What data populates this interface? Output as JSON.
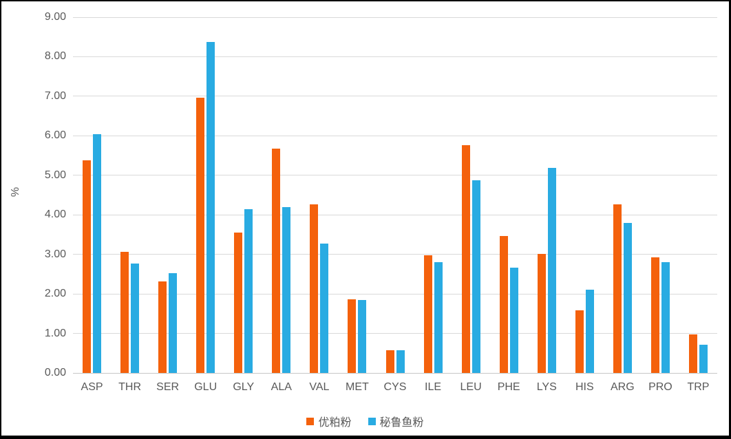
{
  "chart_data": {
    "type": "bar",
    "title": "",
    "xlabel": "",
    "ylabel": "%",
    "ylim": [
      0,
      9
    ],
    "ytick_step": 1,
    "ytick_decimals": 2,
    "grid": true,
    "legend_position": "bottom",
    "categories": [
      "ASP",
      "THR",
      "SER",
      "GLU",
      "GLY",
      "ALA",
      "VAL",
      "MET",
      "CYS",
      "ILE",
      "LEU",
      "PHE",
      "LYS",
      "HIS",
      "ARG",
      "PRO",
      "TRP"
    ],
    "series": [
      {
        "name": "优粕粉",
        "color": "#f4610c",
        "values": [
          5.38,
          3.06,
          2.31,
          6.97,
          3.55,
          5.68,
          4.26,
          1.87,
          0.58,
          2.98,
          5.76,
          3.47,
          3.02,
          1.58,
          4.26,
          2.92,
          0.97
        ]
      },
      {
        "name": "秘鲁鱼粉",
        "color": "#29abe2",
        "values": [
          6.04,
          2.76,
          2.52,
          8.37,
          4.14,
          4.19,
          3.27,
          1.85,
          0.57,
          2.8,
          4.87,
          2.66,
          5.18,
          2.11,
          3.79,
          2.8,
          0.72
        ]
      }
    ]
  },
  "colors": {
    "gridline": "#d9d9d9",
    "axis_line": "#c6c6c6",
    "tick_text": "#595959",
    "frame_border": "#000000",
    "background": "#ffffff"
  }
}
